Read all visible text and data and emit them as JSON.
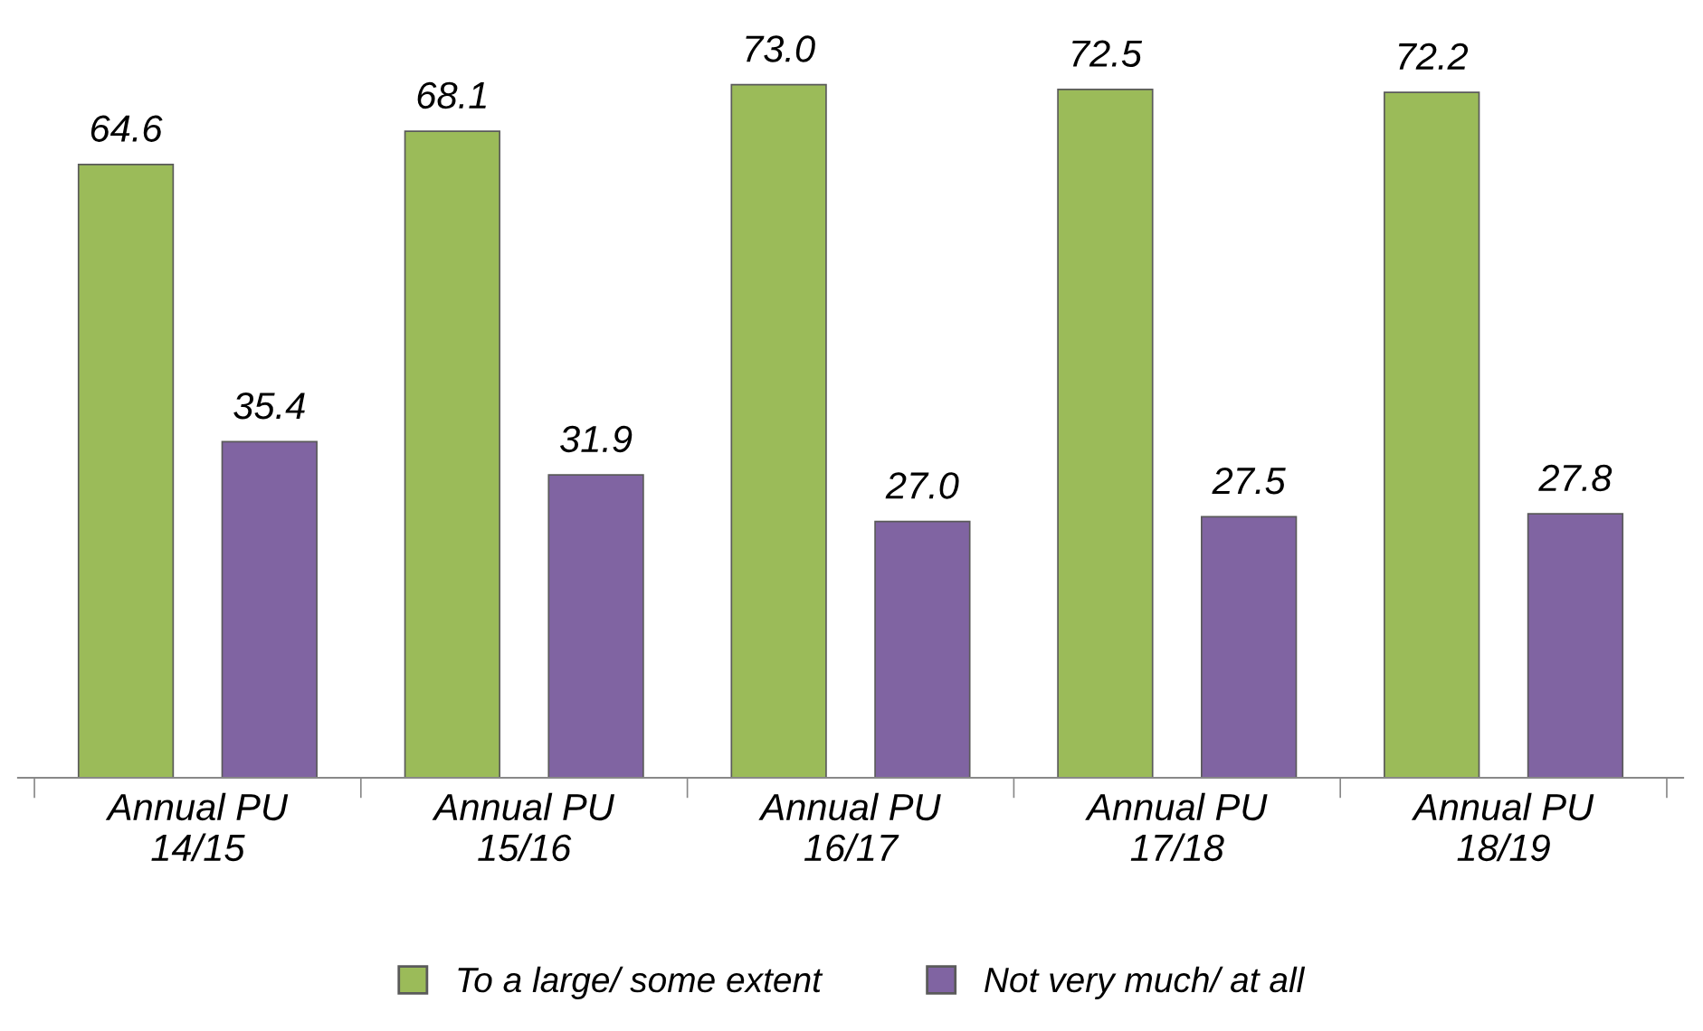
{
  "chart_data": {
    "type": "bar",
    "categories": [
      "Annual PU\n14/15",
      "Annual PU\n15/16",
      "Annual PU\n16/17",
      "Annual PU\n17/18",
      "Annual PU\n18/19"
    ],
    "series": [
      {
        "name": "To a large/ some extent",
        "color": "#9bbb59",
        "values": [
          64.6,
          68.1,
          73.0,
          72.5,
          72.2
        ],
        "value_labels": [
          "64.6",
          "68.1",
          "73.0",
          "72.5",
          "72.2"
        ]
      },
      {
        "name": "Not very much/ at all",
        "color": "#8064a2",
        "values": [
          35.4,
          31.9,
          27.0,
          27.5,
          27.8
        ],
        "value_labels": [
          "35.4",
          "31.9",
          "27.0",
          "27.5",
          "27.8"
        ]
      }
    ],
    "legend": "bottom",
    "grid": false,
    "tick_labels": "x"
  }
}
